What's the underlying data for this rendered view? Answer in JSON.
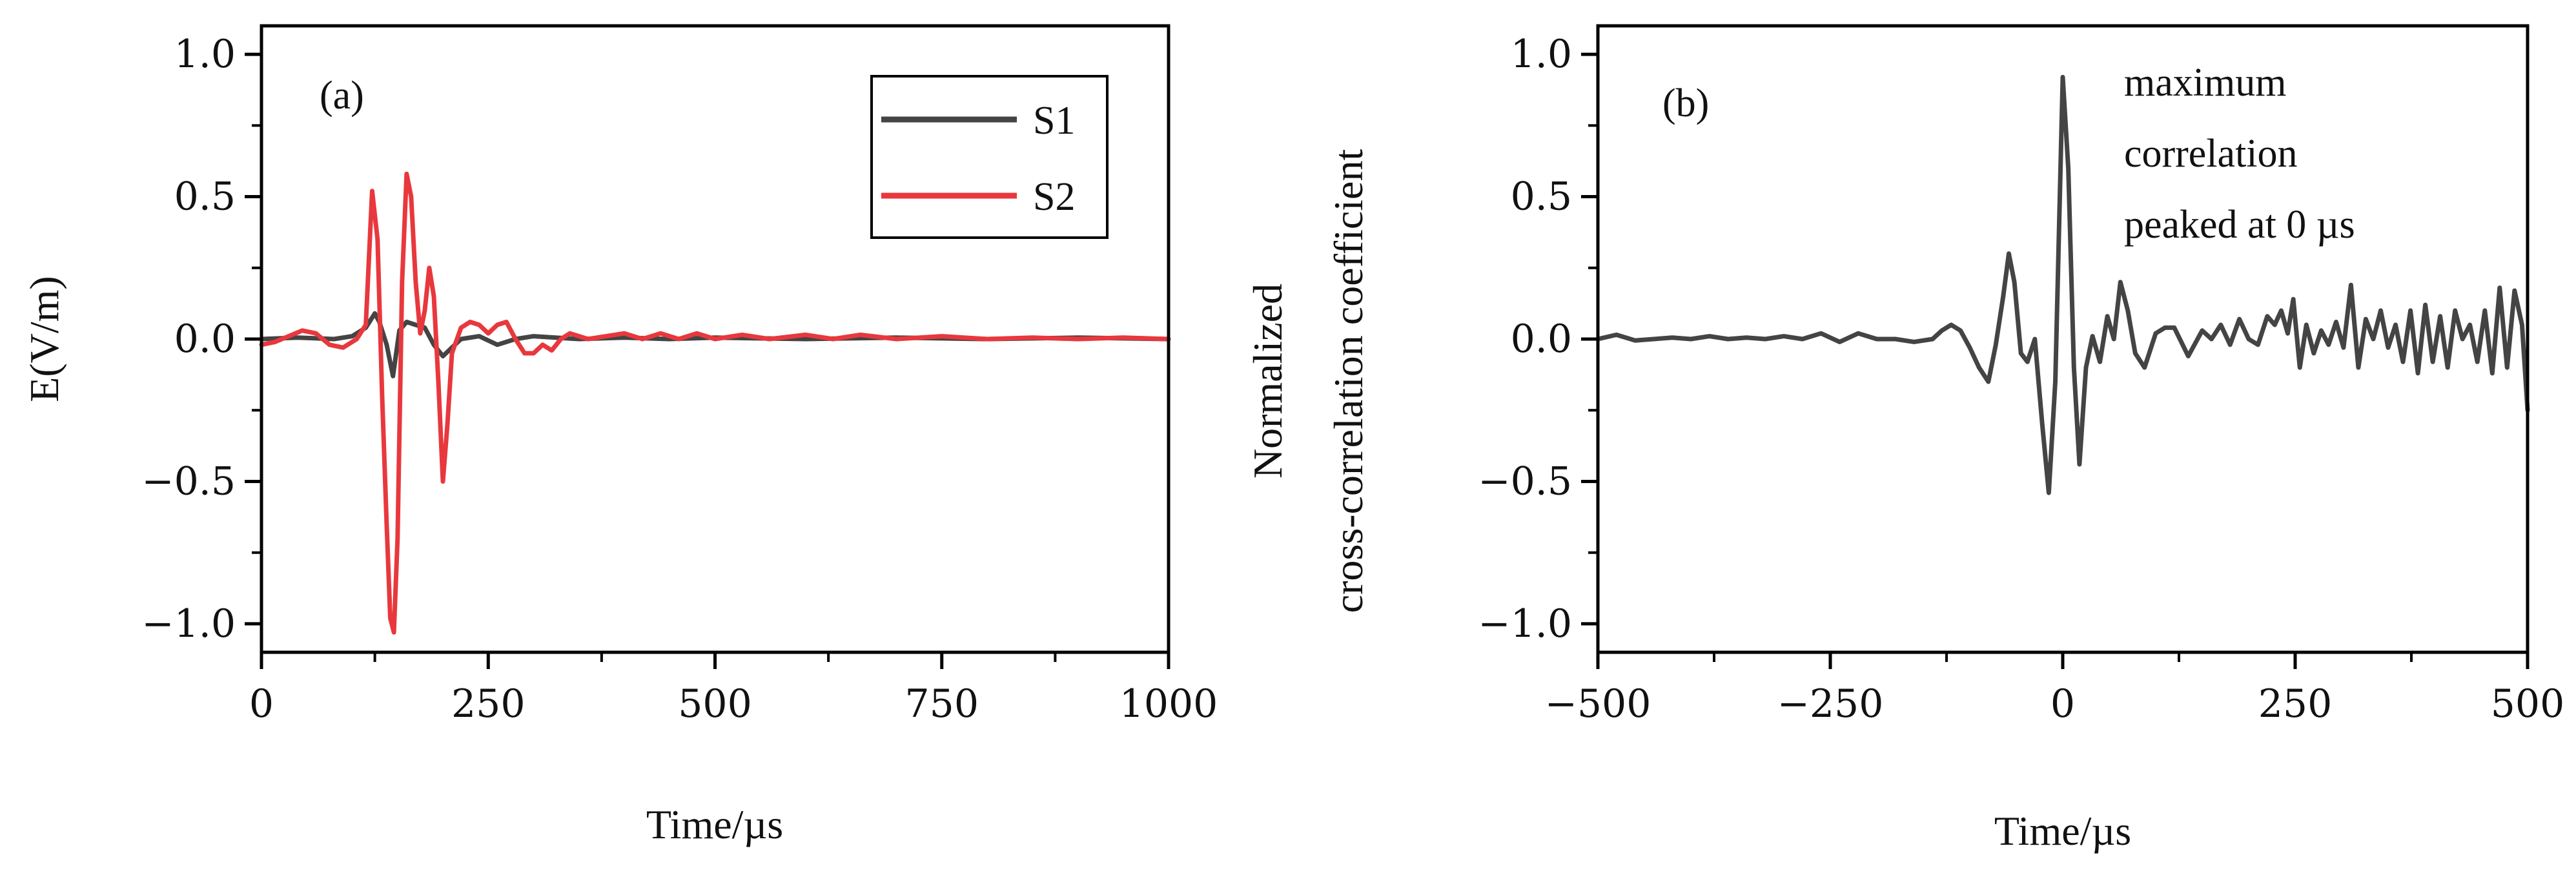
{
  "chart_data": [
    {
      "panel": "a",
      "type": "line",
      "panel_label": "(a)",
      "xlabel": "Time/µs",
      "ylabel": "E(V/m)",
      "xlim": [
        0,
        1000
      ],
      "ylim": [
        -1.1,
        1.1
      ],
      "xticks": [
        0,
        250,
        500,
        750,
        1000
      ],
      "xtick_labels": [
        "0",
        "250",
        "500",
        "750",
        "1000"
      ],
      "yticks": [
        1.0,
        0.5,
        0.0,
        -0.5,
        -1.0
      ],
      "ytick_labels": [
        "1.0",
        "0.5",
        "0.0",
        "−0.5",
        "−1.0"
      ],
      "legend": {
        "position": "top-right",
        "entries": [
          "S1",
          "S2"
        ]
      },
      "series": [
        {
          "name": "S1",
          "color": "#444444",
          "x": [
            0,
            40,
            80,
            100,
            115,
            125,
            130,
            138,
            145,
            152,
            160,
            170,
            180,
            190,
            200,
            210,
            220,
            240,
            260,
            280,
            300,
            350,
            400,
            450,
            500,
            600,
            700,
            800,
            900,
            1000
          ],
          "y": [
            0.0,
            0.005,
            0.0,
            0.01,
            0.04,
            0.09,
            0.06,
            -0.02,
            -0.13,
            0.03,
            0.06,
            0.05,
            0.04,
            -0.02,
            -0.06,
            -0.03,
            0.0,
            0.01,
            -0.02,
            0.0,
            0.01,
            0.0,
            0.005,
            0.0,
            0.005,
            0.0,
            0.005,
            0.0,
            0.005,
            0.0
          ]
        },
        {
          "name": "S2",
          "color": "#e8383d",
          "x": [
            0,
            15,
            30,
            45,
            60,
            75,
            90,
            105,
            115,
            122,
            128,
            133,
            138,
            142,
            146,
            150,
            155,
            160,
            165,
            170,
            175,
            180,
            185,
            190,
            195,
            200,
            205,
            210,
            220,
            230,
            240,
            250,
            260,
            270,
            280,
            290,
            300,
            310,
            320,
            330,
            340,
            360,
            380,
            400,
            420,
            440,
            460,
            480,
            500,
            530,
            560,
            600,
            630,
            660,
            700,
            750,
            800,
            850,
            900,
            950,
            1000
          ],
          "y": [
            -0.02,
            -0.01,
            0.01,
            0.03,
            0.02,
            -0.02,
            -0.03,
            0.0,
            0.05,
            0.52,
            0.35,
            -0.2,
            -0.65,
            -0.98,
            -1.03,
            -0.7,
            0.2,
            0.58,
            0.5,
            0.2,
            0.02,
            0.1,
            0.25,
            0.15,
            -0.15,
            -0.5,
            -0.3,
            -0.05,
            0.04,
            0.06,
            0.05,
            0.02,
            0.05,
            0.06,
            0.0,
            -0.05,
            -0.05,
            -0.02,
            -0.04,
            0.0,
            0.02,
            0.0,
            0.01,
            0.02,
            0.0,
            0.02,
            0.0,
            0.02,
            0.0,
            0.015,
            0.0,
            0.015,
            0.0,
            0.015,
            0.0,
            0.01,
            0.0,
            0.005,
            0.0,
            0.005,
            0.0
          ]
        }
      ]
    },
    {
      "panel": "b",
      "type": "line",
      "panel_label": "(b)",
      "xlabel": "Time/µs",
      "ylabel_lines": [
        "Normalized",
        "cross-correlation coefficient"
      ],
      "xlim": [
        -500,
        500
      ],
      "ylim": [
        -1.1,
        1.1
      ],
      "xticks": [
        -500,
        -250,
        0,
        250,
        500
      ],
      "xtick_labels": [
        "−500",
        "−250",
        "0",
        "250",
        "500"
      ],
      "yticks": [
        1.0,
        0.5,
        0.0,
        -0.5,
        -1.0
      ],
      "ytick_labels": [
        "1.0",
        "0.5",
        "0.0",
        "−0.5",
        "−1.0"
      ],
      "annotation": [
        "maximum",
        "correlation",
        "peaked at 0 µs"
      ],
      "series": [
        {
          "name": "cross-correlation",
          "color": "#444444",
          "x": [
            -500,
            -480,
            -460,
            -440,
            -420,
            -400,
            -380,
            -360,
            -340,
            -320,
            -300,
            -280,
            -260,
            -240,
            -220,
            -200,
            -180,
            -160,
            -140,
            -130,
            -120,
            -110,
            -100,
            -90,
            -80,
            -72,
            -64,
            -58,
            -52,
            -45,
            -38,
            -30,
            -22,
            -15,
            -8,
            0,
            6,
            12,
            18,
            25,
            32,
            40,
            48,
            55,
            62,
            70,
            78,
            88,
            100,
            110,
            120,
            135,
            150,
            160,
            170,
            180,
            190,
            200,
            210,
            220,
            228,
            235,
            242,
            248,
            255,
            262,
            270,
            278,
            286,
            294,
            302,
            310,
            318,
            326,
            334,
            342,
            350,
            358,
            366,
            374,
            382,
            390,
            398,
            406,
            414,
            422,
            430,
            438,
            446,
            454,
            462,
            470,
            478,
            486,
            494,
            500
          ],
          "y": [
            0.0,
            0.015,
            -0.005,
            0.0,
            0.005,
            0.0,
            0.01,
            0.0,
            0.005,
            0.0,
            0.01,
            0.0,
            0.02,
            -0.01,
            0.02,
            0.0,
            0.0,
            -0.01,
            0.0,
            0.03,
            0.05,
            0.03,
            -0.03,
            -0.1,
            -0.15,
            -0.02,
            0.15,
            0.3,
            0.2,
            -0.05,
            -0.08,
            0.0,
            -0.3,
            -0.54,
            -0.15,
            0.92,
            0.6,
            -0.1,
            -0.44,
            -0.1,
            0.01,
            -0.08,
            0.08,
            0.0,
            0.2,
            0.1,
            -0.05,
            -0.1,
            0.02,
            0.04,
            0.04,
            -0.06,
            0.03,
            0.0,
            0.05,
            -0.02,
            0.07,
            0.0,
            -0.02,
            0.08,
            0.05,
            0.1,
            0.02,
            0.14,
            -0.1,
            0.05,
            -0.05,
            0.03,
            -0.02,
            0.06,
            -0.03,
            0.19,
            -0.1,
            0.07,
            0.0,
            0.1,
            -0.03,
            0.05,
            -0.08,
            0.1,
            -0.12,
            0.12,
            -0.08,
            0.08,
            -0.1,
            0.1,
            0.0,
            0.05,
            -0.08,
            0.1,
            -0.12,
            0.18,
            -0.1,
            0.17,
            0.05,
            -0.25
          ]
        }
      ]
    }
  ]
}
